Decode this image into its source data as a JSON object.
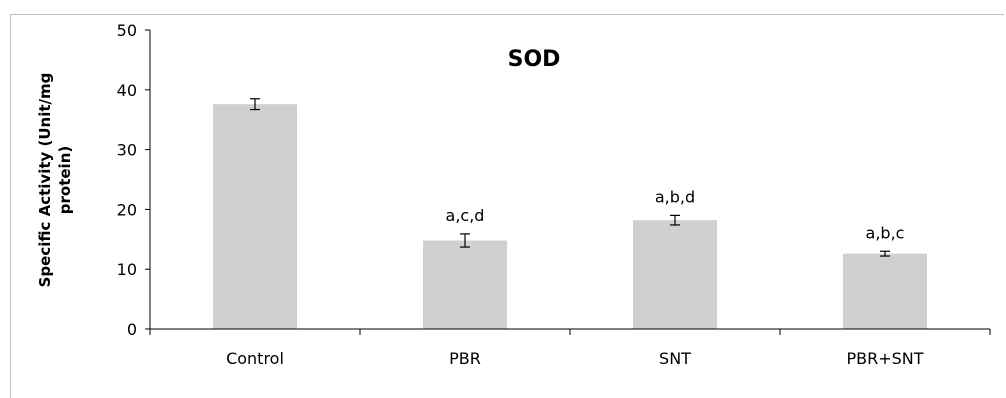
{
  "chart_data": {
    "type": "bar",
    "title": "SOD",
    "xlabel": "",
    "ylabel_lines": [
      "Specific Activity (Unit/mg",
      "protein)"
    ],
    "categories": [
      "Control",
      "PBR",
      "SNT",
      "PBR+SNT"
    ],
    "values": [
      37.6,
      14.8,
      18.2,
      12.6
    ],
    "errors": [
      0.9,
      1.1,
      0.8,
      0.4
    ],
    "annotations": [
      "",
      "a,c,d",
      "a,b,d",
      "a,b,c"
    ],
    "ylim": [
      0,
      50
    ],
    "yticks": [
      0,
      10,
      20,
      30,
      40,
      50
    ],
    "grid": false,
    "legend": "none",
    "bar_color": "#d0d0d0"
  }
}
